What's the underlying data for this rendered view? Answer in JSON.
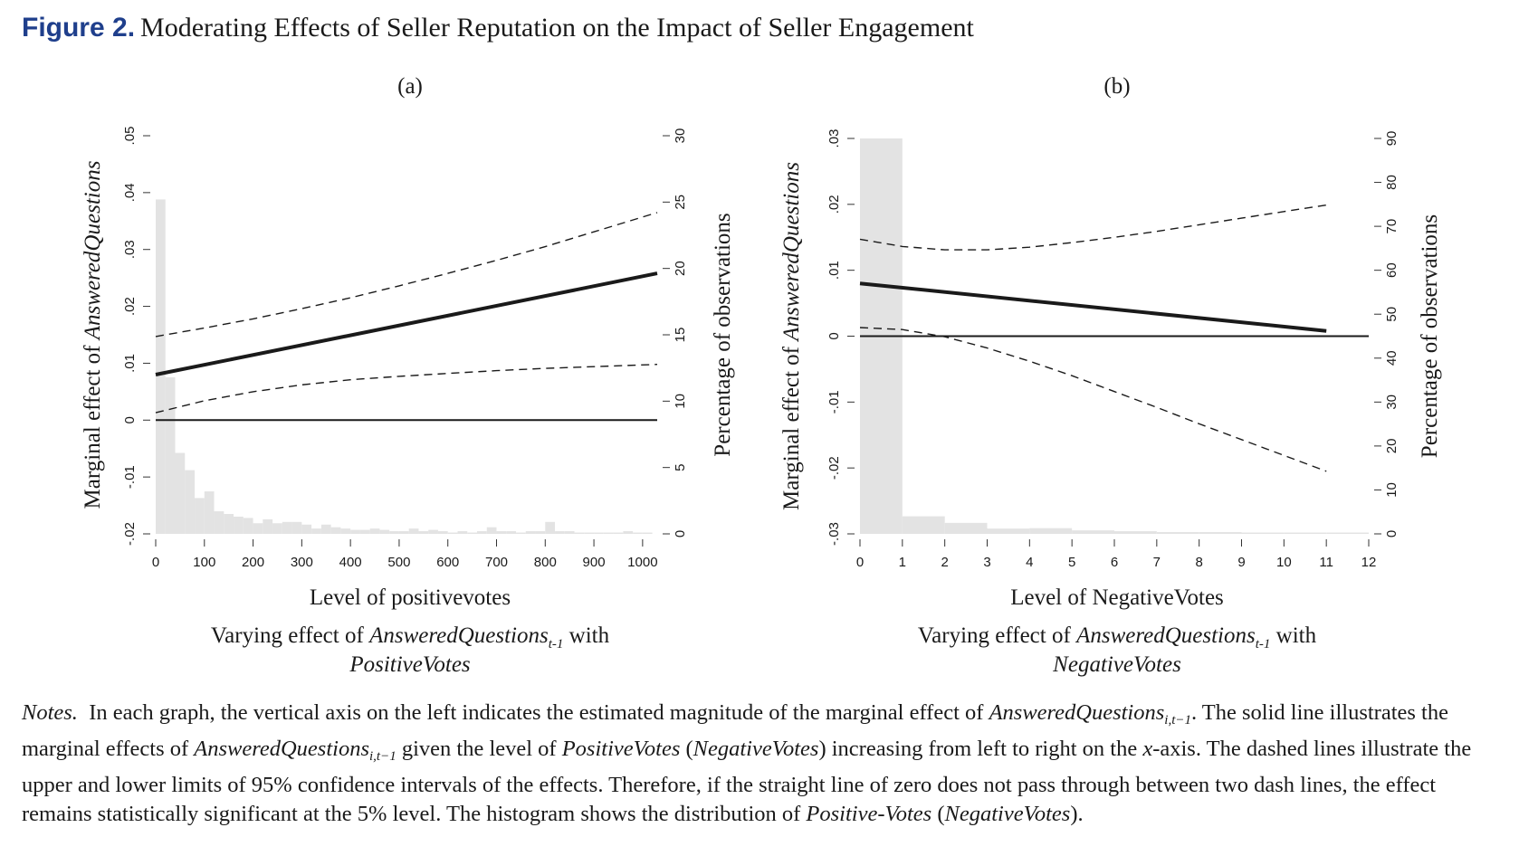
{
  "figure": {
    "label": "Figure 2.",
    "title": "Moderating Effects of Seller Reputation on the Impact of Seller Engagement"
  },
  "notes": {
    "lead": "Notes.",
    "text_1": "In each graph, the vertical axis on the left indicates the estimated magnitude of the marginal effect of",
    "var_answered": "AnsweredQuestions",
    "var_sub": "i,t−1",
    "text_2": ". The solid line illustrates the marginal effects of",
    "text_3": "given the level of",
    "var_positive": "PositiveVotes",
    "var_negative": "NegativeVotes",
    "text_4": "increasing from left to right on the",
    "var_x": "x",
    "text_5": "-axis. The dashed lines illustrate the upper and lower limits of 95% confidence intervals of the effects. Therefore, if the straight line of zero does not pass through between two dash lines, the effect remains statistically significant at the 5% level. The histogram shows the distribution of",
    "var_positive_hyph": "Positive-Votes"
  },
  "colors": {
    "histogram": "#e3e3e3",
    "line": "#1a1a1a",
    "title_label": "#1f3f8c"
  },
  "chart_data": [
    {
      "type": "line",
      "panel": "(a)",
      "xlabel": "Level of positivevotes",
      "ylabel_prefix": "Marginal effect of ",
      "ylabel_var": "AnsweredQuestions",
      "ylabel_right": "Percentage of observations",
      "caption_prefix": "Varying effect of ",
      "caption_var": "AnsweredQuestions",
      "caption_sub": "t-1",
      "caption_suffix": " with",
      "caption_line2": "PositiveVotes",
      "xlim": [
        0,
        1030
      ],
      "ylim": [
        -0.02,
        0.05
      ],
      "y2lim": [
        0,
        30
      ],
      "xticks": [
        0,
        100,
        200,
        300,
        400,
        500,
        600,
        700,
        800,
        900,
        1000
      ],
      "xtick_labels": [
        "0",
        "100",
        "200",
        "300",
        "400",
        "500",
        "600",
        "700",
        "800",
        "900",
        "1000"
      ],
      "yticks": [
        -0.02,
        -0.01,
        0,
        0.01,
        0.02,
        0.03,
        0.04,
        0.05
      ],
      "ytick_labels": [
        "-.02",
        "-.01",
        "0",
        ".01",
        ".02",
        ".03",
        ".04",
        ".05"
      ],
      "y2ticks": [
        0,
        5,
        10,
        15,
        20,
        25,
        30
      ],
      "y2tick_labels": [
        "0",
        "5",
        "10",
        "15",
        "20",
        "25",
        "30"
      ],
      "histogram": {
        "bin_width": 20,
        "bin_starts": [
          0,
          20,
          40,
          60,
          80,
          100,
          120,
          140,
          160,
          180,
          200,
          220,
          240,
          260,
          280,
          300,
          320,
          340,
          360,
          380,
          400,
          420,
          440,
          460,
          480,
          500,
          520,
          540,
          560,
          580,
          600,
          620,
          640,
          660,
          680,
          700,
          720,
          740,
          760,
          780,
          800,
          820,
          840,
          860,
          880,
          900,
          920,
          940,
          960,
          980,
          1000
        ],
        "percent": [
          25.2,
          11.8,
          6.1,
          4.8,
          2.7,
          3.2,
          1.7,
          1.5,
          1.3,
          1.2,
          0.8,
          1.1,
          0.8,
          0.9,
          0.9,
          0.7,
          0.4,
          0.7,
          0.5,
          0.4,
          0.3,
          0.3,
          0.4,
          0.3,
          0.2,
          0.2,
          0.4,
          0.2,
          0.3,
          0.2,
          0.1,
          0.2,
          0.1,
          0.2,
          0.5,
          0.2,
          0.2,
          0.1,
          0.2,
          0.2,
          0.9,
          0.2,
          0.2,
          0.1,
          0.1,
          0.1,
          0.1,
          0.1,
          0.2,
          0.1,
          0.1
        ]
      },
      "series": [
        {
          "role": "effect",
          "style": "solid-thick",
          "x": [
            0,
            1030
          ],
          "y": [
            0.008,
            0.0258
          ]
        },
        {
          "role": "upper_ci",
          "style": "dashed",
          "x": [
            0,
            100,
            200,
            300,
            400,
            500,
            600,
            700,
            800,
            900,
            1030
          ],
          "y": [
            0.0147,
            0.0162,
            0.0178,
            0.0196,
            0.0215,
            0.0236,
            0.0258,
            0.0281,
            0.0305,
            0.0331,
            0.0365
          ]
        },
        {
          "role": "lower_ci",
          "style": "dashed",
          "x": [
            0,
            100,
            200,
            300,
            400,
            500,
            600,
            700,
            800,
            900,
            1030
          ],
          "y": [
            0.0013,
            0.0034,
            0.005,
            0.0062,
            0.0071,
            0.0077,
            0.0082,
            0.0087,
            0.0091,
            0.0094,
            0.0098
          ]
        },
        {
          "role": "zero",
          "style": "solid-thin",
          "x": [
            0,
            1030
          ],
          "y": [
            0,
            0
          ]
        }
      ]
    },
    {
      "type": "line",
      "panel": "(b)",
      "xlabel": "Level of NegativeVotes",
      "ylabel_prefix": "Marginal effect of ",
      "ylabel_var": "AnsweredQuestions",
      "ylabel_right": "Percentage of observations",
      "caption_prefix": "Varying effect of ",
      "caption_var": "AnsweredQuestions",
      "caption_sub": "t-1",
      "caption_suffix": " with",
      "caption_line2": "NegativeVotes",
      "xlim": [
        0,
        12
      ],
      "ylim": [
        -0.03,
        0.03
      ],
      "y2lim": [
        0,
        90
      ],
      "xticks": [
        0,
        1,
        2,
        3,
        4,
        5,
        6,
        7,
        8,
        9,
        10,
        11,
        12
      ],
      "xtick_labels": [
        "0",
        "1",
        "2",
        "3",
        "4",
        "5",
        "6",
        "7",
        "8",
        "9",
        "10",
        "11",
        "12"
      ],
      "yticks": [
        -0.03,
        -0.02,
        -0.01,
        0,
        0.01,
        0.02,
        0.03
      ],
      "ytick_labels": [
        "-.03",
        "-.02",
        "-.01",
        "0",
        ".01",
        ".02",
        ".03"
      ],
      "y2ticks": [
        0,
        10,
        20,
        30,
        40,
        50,
        60,
        70,
        80,
        90
      ],
      "y2tick_labels": [
        "0",
        "10",
        "20",
        "30",
        "40",
        "50",
        "60",
        "70",
        "80",
        "90"
      ],
      "histogram": {
        "bin_width": 1,
        "bin_starts": [
          0,
          1,
          2,
          3,
          4,
          5,
          6,
          7,
          8,
          9,
          10,
          11
        ],
        "percent": [
          90,
          4.0,
          2.5,
          1.2,
          1.3,
          0.8,
          0.6,
          0.4,
          0.4,
          0.3,
          0.3,
          0.3
        ]
      },
      "series": [
        {
          "role": "effect",
          "style": "solid-thick",
          "x": [
            0,
            11
          ],
          "y": [
            0.008,
            0.0008
          ]
        },
        {
          "role": "upper_ci",
          "style": "dashed",
          "x": [
            0,
            1,
            2,
            3,
            4,
            5,
            6,
            7,
            8,
            9,
            10,
            11
          ],
          "y": [
            0.0147,
            0.0136,
            0.0131,
            0.0131,
            0.0135,
            0.0142,
            0.015,
            0.0159,
            0.0169,
            0.0179,
            0.0189,
            0.0199
          ]
        },
        {
          "role": "lower_ci",
          "style": "dashed",
          "x": [
            0,
            1,
            2,
            3,
            4,
            5,
            6,
            7,
            8,
            9,
            10,
            11
          ],
          "y": [
            0.0013,
            0.001,
            -0.0001,
            -0.0018,
            -0.0038,
            -0.006,
            -0.0084,
            -0.0108,
            -0.0133,
            -0.0157,
            -0.0181,
            -0.0205
          ]
        },
        {
          "role": "zero",
          "style": "solid-thin",
          "x": [
            0,
            12
          ],
          "y": [
            0,
            0
          ]
        }
      ]
    }
  ]
}
